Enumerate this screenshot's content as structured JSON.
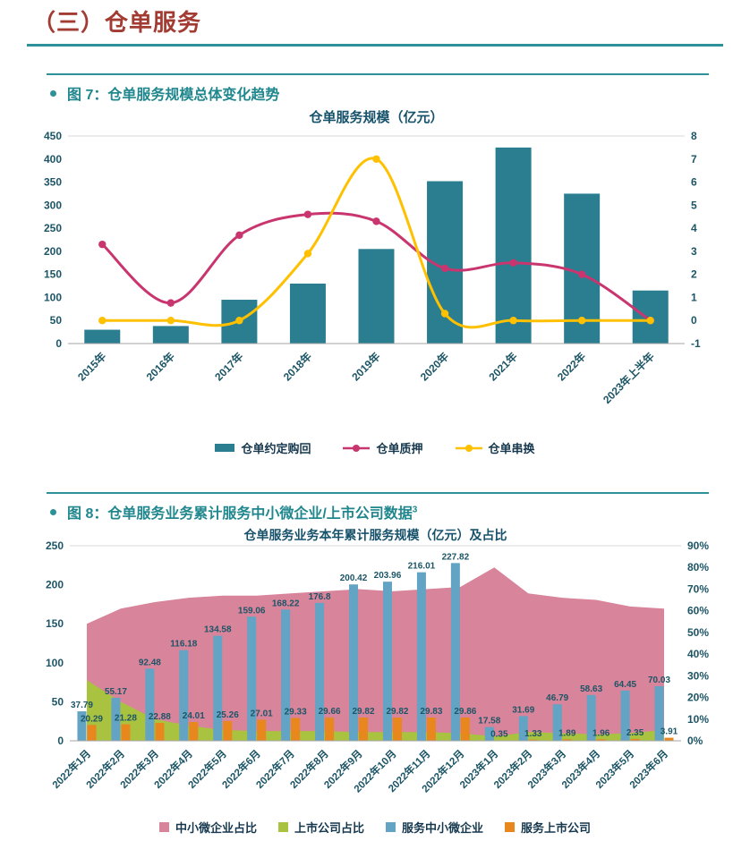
{
  "page": {
    "heading": "（三）仓单服务"
  },
  "figures": [
    {
      "caption": "图 7：仓单服务规模总体变化趋势"
    },
    {
      "caption": "图 8：仓单服务业务累计服务中小微企业/上市公司数据",
      "superscript": "3"
    }
  ],
  "colors": {
    "accent_teal": "#2E9099",
    "heading_red": "#A23B32",
    "caption_teal": "#1F878D",
    "chart_text": "#1C5566"
  },
  "chart_data": [
    {
      "type": "bar",
      "title": "仓单服务规模（亿元）",
      "categories": [
        "2015年",
        "2016年",
        "2017年",
        "2018年",
        "2019年",
        "2020年",
        "2021年",
        "2022年",
        "2023年上半年"
      ],
      "left_axis": {
        "min": 0,
        "max": 450,
        "step": 50,
        "suffix": ""
      },
      "right_axis": {
        "min": -1,
        "max": 8,
        "step": 1,
        "suffix": ""
      },
      "grid": false,
      "legend_position": "bottom",
      "series": [
        {
          "name": "仓单约定购回",
          "type": "bar",
          "axis": "left",
          "color": "#2A7E90",
          "values": [
            30,
            38,
            95,
            130,
            205,
            352,
            425,
            325,
            115
          ]
        },
        {
          "name": "仓单质押",
          "type": "line",
          "axis": "left",
          "color": "#C9366F",
          "values": [
            215,
            88,
            235,
            280,
            265,
            163,
            175,
            150,
            50
          ]
        },
        {
          "name": "仓单串换",
          "type": "line",
          "axis": "right",
          "color": "#FFC000",
          "values": [
            0,
            0,
            0,
            2.9,
            7,
            0.3,
            0,
            0,
            0
          ]
        }
      ]
    },
    {
      "type": "bar+area",
      "title": "仓单服务业务本年累计服务规模（亿元）及占比",
      "categories": [
        "2022年1月",
        "2022年2月",
        "2022年3月",
        "2022年4月",
        "2022年5月",
        "2022年6月",
        "2022年7月",
        "2022年8月",
        "2022年9月",
        "2022年10月",
        "2022年11月",
        "2022年12月",
        "2023年1月",
        "2023年2月",
        "2023年3月",
        "2023年4月",
        "2023年5月",
        "2023年6月"
      ],
      "left_axis": {
        "min": 0,
        "max": 250,
        "step": 50,
        "suffix": ""
      },
      "right_axis": {
        "min": 0,
        "max": 90,
        "step": 10,
        "suffix": "%"
      },
      "grid": false,
      "legend_position": "bottom",
      "series": [
        {
          "name": "中小微企业占比",
          "type": "area",
          "axis": "right",
          "color": "#D8849B",
          "values": [
            54,
            61,
            64,
            66,
            67,
            67,
            68,
            69,
            70,
            69,
            70,
            71,
            80,
            68,
            66,
            65,
            62,
            61
          ]
        },
        {
          "name": "上市公司占比",
          "type": "area",
          "axis": "right",
          "color": "#A9C23F",
          "values": [
            28,
            18,
            10,
            7,
            5,
            4.5,
            4.5,
            4.5,
            4,
            4,
            4,
            3.5,
            2,
            4,
            3.5,
            3,
            3.5,
            5
          ]
        },
        {
          "name": "服务中小微企业",
          "type": "bar",
          "axis": "left",
          "color": "#63A3C3",
          "show_labels": true,
          "values": [
            37.79,
            55.17,
            92.48,
            116.18,
            134.58,
            159.06,
            168.22,
            176.8,
            200.42,
            203.96,
            216.01,
            227.82,
            17.58,
            31.69,
            46.79,
            58.63,
            64.45,
            70.03
          ]
        },
        {
          "name": "服务上市公司",
          "type": "bar",
          "axis": "left",
          "color": "#E8871E",
          "show_labels": true,
          "values": [
            20.29,
            21.28,
            22.88,
            24.01,
            25.26,
            27.01,
            29.33,
            29.66,
            29.82,
            29.82,
            29.83,
            29.86,
            0.35,
            1.33,
            1.89,
            1.96,
            2.35,
            3.91
          ]
        }
      ]
    }
  ]
}
